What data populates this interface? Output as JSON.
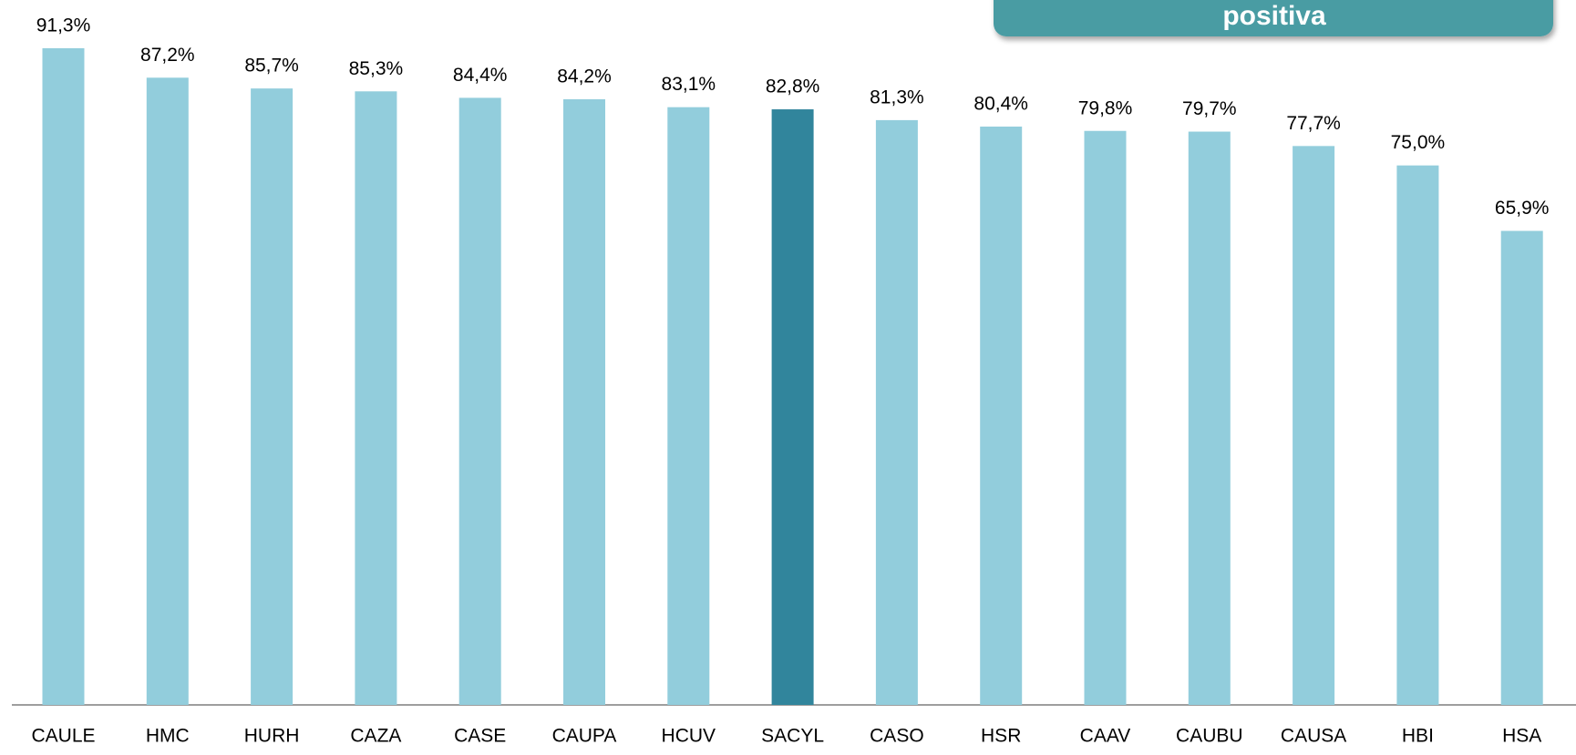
{
  "chart_data": {
    "type": "bar",
    "title": "positiva",
    "categories": [
      "CAULE",
      "HMC",
      "HURH",
      "CAZA",
      "CASE",
      "CAUPA",
      "HCUV",
      "SACYL",
      "CASO",
      "HSR",
      "CAAV",
      "CAUBU",
      "CAUSA",
      "HBI",
      "HSA"
    ],
    "values": [
      91.3,
      87.2,
      85.7,
      85.3,
      84.4,
      84.2,
      83.1,
      82.8,
      81.3,
      80.4,
      79.8,
      79.7,
      77.7,
      75.0,
      65.9
    ],
    "value_labels": [
      "91,3%",
      "87,2%",
      "85,7%",
      "85,3%",
      "84,4%",
      "84,2%",
      "83,1%",
      "82,8%",
      "81,3%",
      "80,4%",
      "79,8%",
      "79,7%",
      "77,7%",
      "75,0%",
      "65,9%"
    ],
    "colors": [
      "#92cddc",
      "#92cddc",
      "#92cddc",
      "#92cddc",
      "#92cddc",
      "#92cddc",
      "#92cddc",
      "#31859c",
      "#92cddc",
      "#92cddc",
      "#92cddc",
      "#92cddc",
      "#92cddc",
      "#92cddc",
      "#92cddc"
    ],
    "ylim": [
      0,
      98
    ]
  }
}
